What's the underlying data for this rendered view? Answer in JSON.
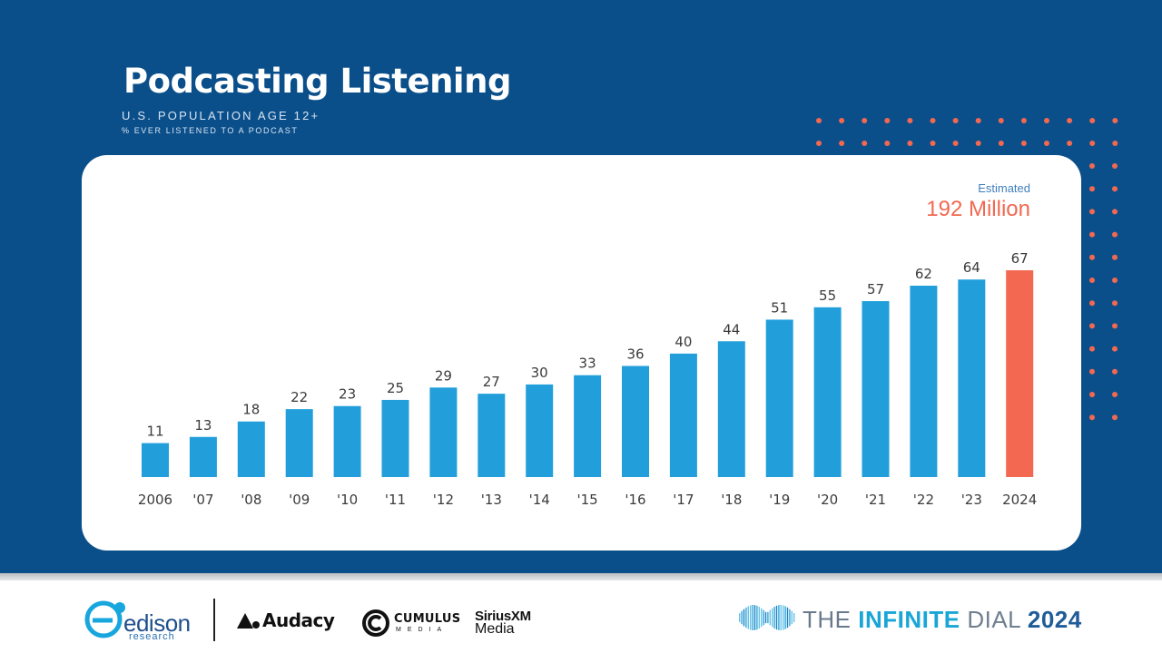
{
  "header": {
    "title": "Podcasting Listening",
    "subtitle": "U.S. POPULATION AGE 12+",
    "subtitle2": "% EVER LISTENED TO A PODCAST"
  },
  "callout": {
    "label": "Estimated",
    "value": "192 Million"
  },
  "chart_data": {
    "type": "bar",
    "title": "Podcasting Listening",
    "categories": [
      "2006",
      "'07",
      "'08",
      "'09",
      "'10",
      "'11",
      "'12",
      "'13",
      "'14",
      "'15",
      "'16",
      "'17",
      "'18",
      "'19",
      "'20",
      "'21",
      "'22",
      "'23",
      "2024"
    ],
    "values": [
      11,
      13,
      18,
      22,
      23,
      25,
      29,
      27,
      30,
      33,
      36,
      40,
      44,
      51,
      55,
      57,
      62,
      64,
      67
    ],
    "highlight_index": 18,
    "colors": {
      "bar": "#229fdb",
      "highlight": "#f26850",
      "label": "#3b3b3b"
    },
    "ylim": [
      0,
      67
    ],
    "grid": false,
    "xlabel": "",
    "ylabel": ""
  },
  "footer": {
    "edison": {
      "name": "edison",
      "sub": "research"
    },
    "audacy": {
      "name": "Audacy"
    },
    "cumulus": {
      "name": "CUMULUS",
      "sub": "MEDIA"
    },
    "sirius": {
      "name": "SiriusXM",
      "sub": "Media"
    },
    "dial": {
      "prefix": "THE",
      "strong": "INFINITE",
      "light": "DIAL",
      "year": "2024"
    }
  },
  "colors": {
    "background": "#0b4f8a",
    "card": "#ffffff",
    "accent": "#f26850",
    "bar": "#229fdb"
  }
}
